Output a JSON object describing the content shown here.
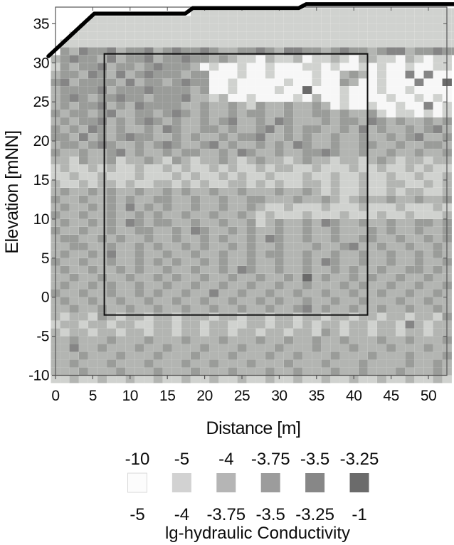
{
  "chart_data": {
    "type": "heatmap",
    "x_label": "Distance [m]",
    "y_label": "Elevation [mNN]",
    "x_ticks": [
      0,
      5,
      10,
      15,
      20,
      25,
      30,
      35,
      40,
      45,
      50
    ],
    "y_ticks": [
      35,
      30,
      25,
      20,
      15,
      10,
      5,
      0,
      -5,
      -10
    ],
    "xlim": [
      0,
      52.5
    ],
    "ylim": [
      -10,
      37.2
    ],
    "grid_on": false,
    "palette": [
      "#f7f7f7",
      "#d0d2cf",
      "#b3b5b2",
      "#9a9c99",
      "#858585",
      "#6a6a6a"
    ],
    "grid": {
      "note": "44 columns of 1.25 m starting at x=-0.625; 49 rows of 1 m from elevation 38 down to -11; digit=palette index, dot=no data (above ground surface)",
      "ncols": 44,
      "nrows": 49,
      "rows": [
        "............................................",
        "...............11111111111111111111111111111",
        "....1111111111111111111111111111111111111111",
        "...11111111111111111111111111111111111111111",
        "..111111111111111111111111111111111111111111",
        ".1111111111111111111111111111111111111111111",
        ".3243342334234334322334324433234332344233433",
        "2343324233423343323211021120112102211021011 ",
        "1323342332343332010010010001101001010010011 ",
        "2332432423433323300010010000100232010040400 ",
        "3423333242332343300100000100100320010004005 ",
        "2333342333433332300100001005000100010010000 ",
        "2343233433233342212001000010200100001001010 ",
        "2323342324333322322321322322320100100100401 ",
        "3233234223323432322323322322332322310110101 ",
        "2323342323432322323422324322232332432322323 ",
        "3232432322324322332322342323322324232232342 ",
        "3324232343322323223233422323223223223234223 ",
        "2332343223234322342322323243223223322322332 ",
        "3223223423223233223243223223343223223223223 ",
        "2213223122321321223212322123221221232122122 ",
        "1211212112112121121211212211211121121121211 ",
        "1121121112111212112121121112112112112112112 ",
        "2112122121122121211221212112212112112211212 ",
        "2322323223223232232232223223212112112122112 ",
        "3223223232233223223223322232232123223223223 ",
        "2322323242323223223223211211121112111211121 ",
        "3223223223232232232232121112111211121121112 ",
        "2322323243233223223223123223243223223223323 ",
        "3223223223322324322323223223223222323223223 ",
        "2332232322322322323223243223223223322322323 ",
        "2233223223232232322323223222322342232232232 ",
        "2322324223223223223223233223223223223223232 ",
        "3223223223232322323223223223243223223223223 ",
        "2322322323223223223243223223223232232233232 ",
        "2232232232232322322322322325232232322322322 ",
        "2322323223223223223223223223222323223223223 ",
        "3223223223232232242232232232232232232232232 ",
        "2322322322322322322322323223223223222322322 ",
        "2232232232232232232232232234232232232232232 ",
        "2122132122122122212212212212212212212212213 ",
        "1221221221122122122112212212122122122142122 ",
        "2122122122122122122122122122132122122122122 ",
        "2232223222322232223222322322322322232232223 ",
        "2242232223223222322232223222322232223222322 ",
        "2223222322232223222322232232223222322232223 ",
        "2232223222322232232223222322232223222232232 ",
        "2223222322232223222322232232223223222322232 ",
        "1121121121121121121121121121121121121121121 "
      ]
    },
    "surface_line": {
      "description": "ground-surface profile (thick black line)",
      "points": [
        [
          -0.95,
          30.85
        ],
        [
          5.2,
          36.3
        ],
        [
          17.4,
          36.3
        ],
        [
          18.4,
          37.0
        ],
        [
          32.6,
          37.0
        ],
        [
          33.6,
          37.5
        ],
        [
          53.8,
          37.5
        ]
      ]
    },
    "highlight_rect": {
      "description": "inner model-domain outline",
      "x1": 6.55,
      "y1": -2.27,
      "x2": 41.85,
      "y2": 31.15
    },
    "legend": {
      "top_labels": [
        "-10",
        "-5",
        "-4",
        "-3.75",
        "-3.5",
        "-3.25"
      ],
      "bottom_labels": [
        "-5",
        "-4",
        "-3.75",
        "-3.5",
        "-3.25",
        "-1"
      ],
      "swatches": [
        "#fcfcfc",
        "#d2d2d2",
        "#b5b5b5",
        "#9c9c9c",
        "#878787",
        "#6b6b6b"
      ],
      "swatch_border": "#d9d9d9",
      "title": "lg-hydraulic Conductivity"
    },
    "colors": {
      "surface_line": "#000000",
      "rect_stroke": "#111111",
      "spine": "#555555",
      "text": "#0c0c0c"
    }
  }
}
